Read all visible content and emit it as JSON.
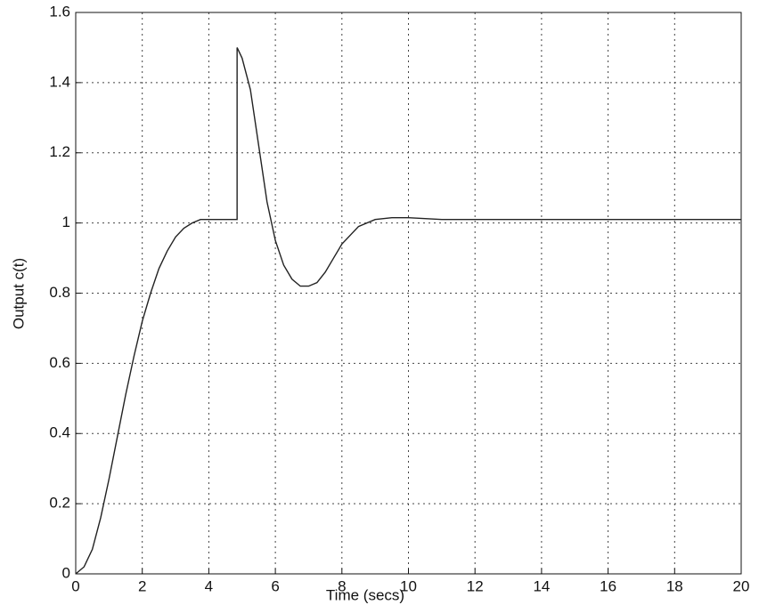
{
  "chart_data": {
    "type": "line",
    "xlabel": "Time (secs)",
    "ylabel": "Output c(t)",
    "x": [
      0,
      0.25,
      0.5,
      0.75,
      1,
      1.25,
      1.5,
      1.75,
      2,
      2.25,
      2.5,
      2.75,
      3,
      3.25,
      3.5,
      3.75,
      4,
      4.5,
      4.85,
      4.85,
      5,
      5.25,
      5.5,
      5.75,
      6,
      6.25,
      6.5,
      6.75,
      7,
      7.25,
      7.5,
      7.75,
      8,
      8.5,
      9,
      9.5,
      10,
      11,
      12,
      14,
      16,
      18,
      20
    ],
    "values": [
      0,
      0.02,
      0.07,
      0.16,
      0.27,
      0.39,
      0.51,
      0.62,
      0.72,
      0.8,
      0.87,
      0.92,
      0.96,
      0.985,
      1.0,
      1.01,
      1.01,
      1.01,
      1.01,
      1.5,
      1.47,
      1.38,
      1.22,
      1.06,
      0.95,
      0.88,
      0.84,
      0.82,
      0.82,
      0.83,
      0.86,
      0.9,
      0.94,
      0.99,
      1.01,
      1.015,
      1.015,
      1.01,
      1.01,
      1.01,
      1.01,
      1.01,
      1.01
    ],
    "color": "#222222",
    "xlim": [
      0,
      20
    ],
    "xticks": [
      0,
      2,
      4,
      6,
      8,
      10,
      12,
      14,
      16,
      18,
      20
    ],
    "ylim": [
      0,
      1.6
    ],
    "yticks": [
      0,
      0.2,
      0.4,
      0.6,
      0.8,
      1,
      1.2,
      1.4,
      1.6
    ],
    "grid": true
  }
}
